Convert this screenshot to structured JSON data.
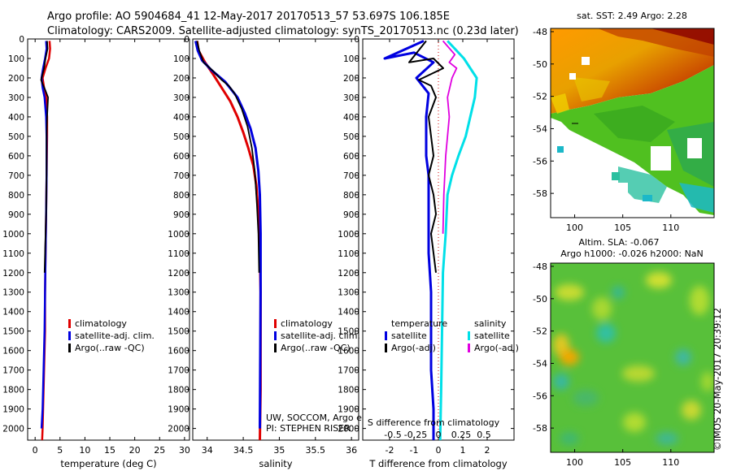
{
  "titles": {
    "line1": "Argo profile: AO 5904684_41 12-May-2017 20170513_57 53.697S 106.185E",
    "line2": "Climatology: CARS2009. Satellite-adjusted climatology: synTS_20170513.nc (0.23d later)"
  },
  "colors": {
    "climatology": "#e00000",
    "satellite": "#0000e0",
    "argo": "#000000",
    "salinity_satellite": "#00e0e8",
    "salinity_argo": "#e000e0"
  },
  "depth_ticks": [
    "0",
    "100",
    "200",
    "300",
    "400",
    "500",
    "600",
    "700",
    "800",
    "900",
    "1000",
    "1100",
    "1200",
    "1300",
    "1400",
    "1500",
    "1600",
    "1700",
    "1800",
    "1900",
    "2000"
  ],
  "chart_data": [
    {
      "type": "line",
      "name": "temperature",
      "xlabel": "temperature (deg C)",
      "ylabel": "depth (dbar)",
      "xlim": [
        -1.5,
        31
      ],
      "ylim": [
        2060,
        0
      ],
      "xtick_values": [
        0,
        5,
        10,
        15,
        20,
        25,
        30
      ],
      "xtick_labels": [
        "0",
        "5",
        "10",
        "15",
        "20",
        "25",
        "30"
      ],
      "legend": [
        "climatology",
        "satellite-adj. clim.",
        "Argo(..raw -QC)"
      ],
      "series": [
        {
          "name": "climatology",
          "x": [
            2.9,
            3.0,
            2.8,
            2.1,
            1.5,
            1.8,
            2.2,
            2.4,
            2.4,
            2.3,
            2.2,
            2.1,
            2.0,
            2.0,
            1.8,
            1.6,
            1.5,
            1.4
          ],
          "y": [
            10,
            50,
            100,
            150,
            200,
            250,
            300,
            400,
            500,
            700,
            900,
            1100,
            1300,
            1500,
            1700,
            1900,
            2000,
            2060
          ]
        },
        {
          "name": "satellite",
          "x": [
            2.2,
            2.3,
            2.0,
            1.6,
            1.3,
            1.5,
            1.9,
            2.2,
            2.3,
            2.3,
            2.2,
            2.1,
            2.0,
            1.9,
            1.7,
            1.5,
            1.3
          ],
          "y": [
            10,
            50,
            100,
            150,
            200,
            250,
            300,
            400,
            500,
            700,
            900,
            1100,
            1300,
            1500,
            1700,
            1900,
            2000
          ]
        },
        {
          "name": "argo",
          "x": [
            2.4,
            2.5,
            2.1,
            1.8,
            1.2,
            1.5,
            2.0,
            2.6,
            2.4,
            2.3,
            2.3,
            2.2,
            2.1,
            2.0,
            1.9
          ],
          "y": [
            10,
            50,
            100,
            150,
            210,
            230,
            260,
            300,
            400,
            500,
            700,
            900,
            1000,
            1100,
            1200
          ]
        }
      ]
    },
    {
      "type": "line",
      "name": "salinity",
      "xlabel": "salinity",
      "ylabel": "depth (dbar)",
      "xlim": [
        33.8,
        36.1
      ],
      "ylim": [
        2060,
        0
      ],
      "xtick_values": [
        34,
        34.5,
        35,
        35.5,
        36
      ],
      "xtick_labels": [
        "34",
        "34.5",
        "35",
        "35.5",
        "36"
      ],
      "legend": [
        "climatology",
        "satellite-adj. clim.",
        "Argo(..raw -QC)"
      ],
      "annotations": [
        "UW, SOCCOM, Argo equivalent",
        "PI: STEPHEN RISER"
      ],
      "series": [
        {
          "name": "climatology",
          "x": [
            33.86,
            33.88,
            33.97,
            34.08,
            34.2,
            34.32,
            34.42,
            34.5,
            34.57,
            34.64,
            34.68,
            34.71,
            34.73,
            34.74,
            34.74,
            34.74,
            34.73
          ],
          "y": [
            10,
            60,
            120,
            180,
            250,
            320,
            400,
            480,
            560,
            650,
            750,
            900,
            1100,
            1300,
            1500,
            1800,
            2060
          ]
        },
        {
          "name": "satellite",
          "x": [
            33.84,
            33.87,
            33.93,
            34.06,
            34.25,
            34.42,
            34.52,
            34.6,
            34.67,
            34.71,
            34.73,
            34.74,
            34.74,
            34.73
          ],
          "y": [
            10,
            60,
            110,
            160,
            220,
            300,
            380,
            460,
            560,
            680,
            800,
            1000,
            1300,
            2000
          ]
        },
        {
          "name": "argo",
          "x": [
            33.86,
            33.89,
            33.95,
            34.07,
            34.2,
            34.3,
            34.38,
            34.48,
            34.56,
            34.62,
            34.66,
            34.69,
            34.71,
            34.72
          ],
          "y": [
            10,
            60,
            120,
            160,
            210,
            240,
            280,
            360,
            450,
            560,
            680,
            850,
            1000,
            1200
          ]
        }
      ]
    },
    {
      "type": "line",
      "name": "T difference from climatology",
      "xlabel": "T difference from climatology",
      "xlabel_top": "S difference from climatology",
      "xlim": [
        -3.1,
        3.1
      ],
      "ylim": [
        2060,
        0
      ],
      "xtick_values": [
        -2,
        -1,
        0,
        1,
        2
      ],
      "xtick_labels": [
        "-2",
        "-1",
        "0",
        "1",
        "2"
      ],
      "salinity_xtick_values": [
        -0.5,
        -0.25,
        0,
        0.25,
        0.5
      ],
      "salinity_xtick_labels": [
        "-0.5",
        "-0.25",
        "0",
        "0.25",
        "0.5"
      ],
      "legend_temperature": {
        "header": "temperature",
        "items": [
          "satellite",
          "Argo(-adj)"
        ]
      },
      "legend_salinity": {
        "header": "salinity",
        "items": [
          "satellite",
          "Argo(-adj)"
        ]
      },
      "series": [
        {
          "name": "T satellite",
          "x": [
            -0.6,
            -2.2,
            -1.0,
            -0.2,
            -0.9,
            -0.4,
            -0.5,
            -0.5,
            -0.5,
            -0.4,
            -0.4,
            -0.4,
            -0.3,
            -0.3,
            -0.3,
            -0.2,
            -0.2,
            -0.2
          ],
          "y": [
            10,
            100,
            70,
            120,
            200,
            280,
            400,
            500,
            600,
            700,
            900,
            1100,
            1300,
            1500,
            1700,
            1900,
            2000,
            2060
          ]
        },
        {
          "name": "T Argo(-adj)",
          "x": [
            -0.5,
            -1.2,
            -0.2,
            0.2,
            -0.8,
            -0.3,
            -0.1,
            -0.4,
            -0.3,
            -0.2,
            -0.4,
            -0.2,
            -0.1,
            -0.3,
            -0.2,
            -0.1
          ],
          "y": [
            10,
            120,
            100,
            150,
            210,
            240,
            300,
            400,
            500,
            600,
            700,
            800,
            900,
            1000,
            1100,
            1200
          ]
        },
        {
          "name": "S satellite",
          "x": [
            0.1,
            0.28,
            0.35,
            0.42,
            0.4,
            0.35,
            0.3,
            0.22,
            0.15,
            0.1,
            0.08,
            0.05,
            0.04,
            0.03,
            0.02
          ],
          "y": [
            10,
            100,
            150,
            200,
            300,
            400,
            500,
            600,
            700,
            800,
            1000,
            1200,
            1500,
            1800,
            2060
          ]
        },
        {
          "name": "S Argo(-adj)",
          "x": [
            0.05,
            0.18,
            0.12,
            0.2,
            0.15,
            0.1,
            0.12,
            0.08,
            0.06,
            0.05
          ],
          "y": [
            10,
            80,
            120,
            150,
            200,
            300,
            400,
            600,
            800,
            1000
          ]
        }
      ]
    },
    {
      "type": "heatmap",
      "name": "sat. SST map",
      "title": "sat. SST: 2.49  Argo: 2.28",
      "xlim": [
        97.5,
        114.5
      ],
      "ylim": [
        -59.5,
        -47.8
      ],
      "xtick_values": [
        100,
        105,
        110
      ],
      "xtick_labels": [
        "100",
        "105",
        "110"
      ],
      "ytick_values": [
        -48,
        -50,
        -52,
        -54,
        -56,
        -58
      ],
      "ytick_labels": [
        "-48",
        "-50",
        "-52",
        "-54",
        "-56",
        "-58"
      ]
    },
    {
      "type": "heatmap",
      "name": "altimetry SLA map",
      "title": "Altim. SLA: -0.067",
      "subtitle": "Argo h1000: -0.026  h2000: NaN",
      "xlim": [
        97.5,
        114.5
      ],
      "ylim": [
        -59.5,
        -47.8
      ],
      "xtick_values": [
        100,
        105,
        110
      ],
      "xtick_labels": [
        "100",
        "105",
        "110"
      ],
      "ytick_values": [
        -48,
        -50,
        -52,
        -54,
        -56,
        -58
      ],
      "ytick_labels": [
        "-48",
        "-50",
        "-52",
        "-54",
        "-56",
        "-58"
      ]
    }
  ],
  "watermark": "©IMOS 20-May-2017 20:39:12"
}
